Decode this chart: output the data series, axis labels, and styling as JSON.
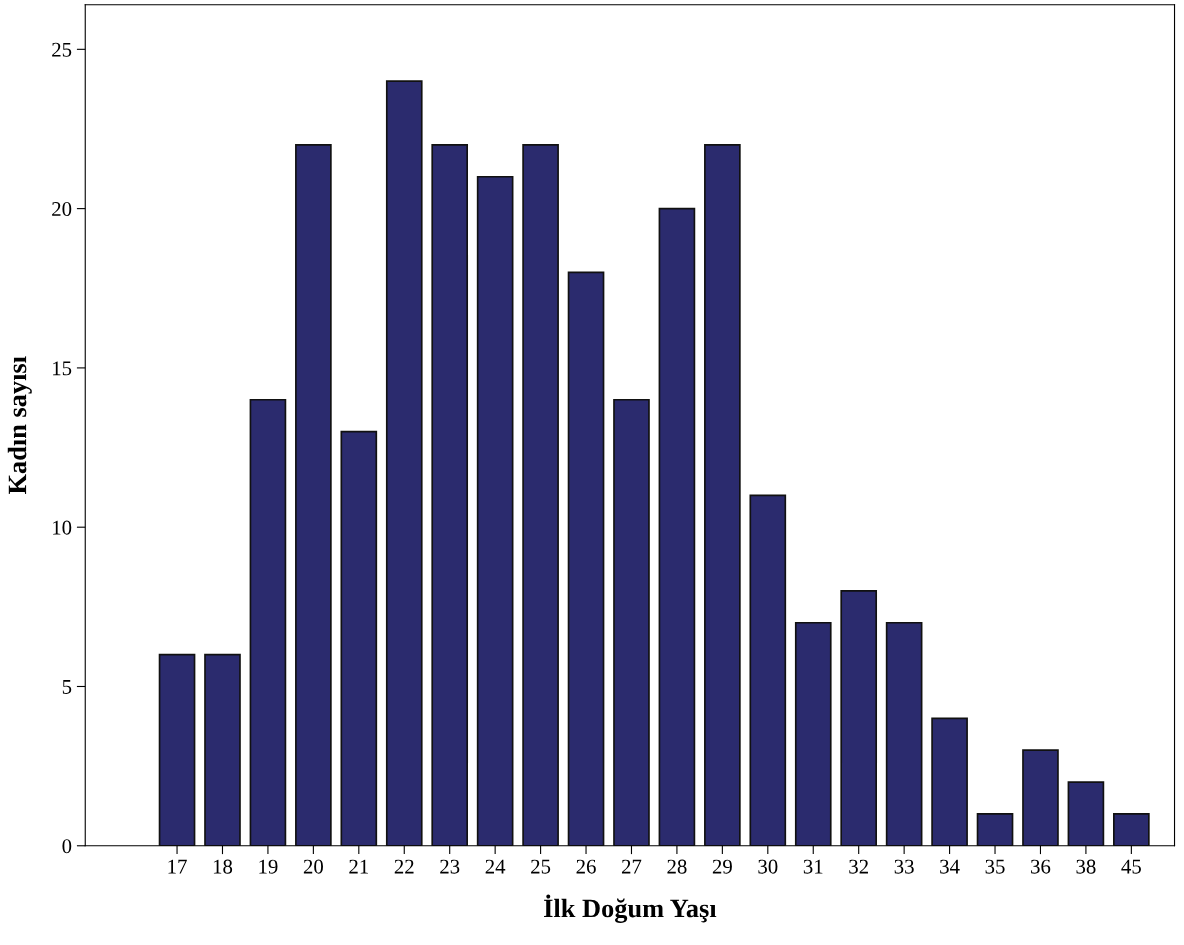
{
  "chart_data": {
    "type": "bar",
    "xlabel": "İlk Doğum Yaşı",
    "ylabel": "Kadın sayısı",
    "categories": [
      "17",
      "18",
      "19",
      "20",
      "21",
      "22",
      "23",
      "24",
      "25",
      "26",
      "27",
      "28",
      "29",
      "30",
      "31",
      "32",
      "33",
      "34",
      "35",
      "36",
      "38",
      "45"
    ],
    "values": [
      6,
      6,
      14,
      22,
      13,
      24,
      22,
      21,
      22,
      18,
      14,
      20,
      22,
      11,
      7,
      8,
      7,
      4,
      1,
      3,
      2,
      1
    ],
    "color": "#2b2b6e",
    "ylim": [
      0,
      26.4
    ],
    "yticks": [
      0,
      5,
      10,
      15,
      20,
      25
    ],
    "grid": false
  }
}
